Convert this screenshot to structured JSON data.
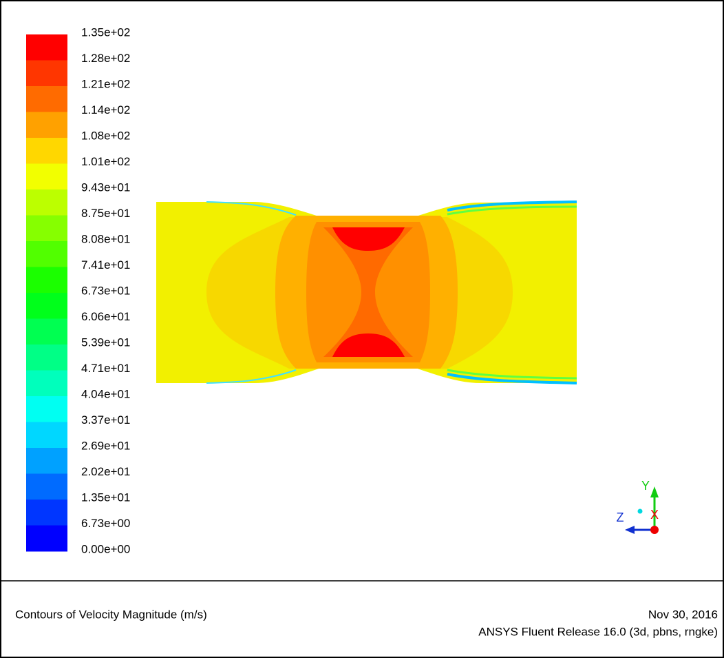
{
  "legend": {
    "labels": [
      "1.35e+02",
      "1.28e+02",
      "1.21e+02",
      "1.14e+02",
      "1.08e+02",
      "1.01e+02",
      "9.43e+01",
      "8.75e+01",
      "8.08e+01",
      "7.41e+01",
      "6.73e+01",
      "6.06e+01",
      "5.39e+01",
      "4.71e+01",
      "4.04e+01",
      "3.37e+01",
      "2.69e+01",
      "2.02e+01",
      "1.35e+01",
      "6.73e+00",
      "0.00e+00"
    ]
  },
  "axes": {
    "y": "Y",
    "z": "Z",
    "x": "X"
  },
  "footer": {
    "title": "Contours of Velocity Magnitude (m/s)",
    "date": "Nov 30, 2016",
    "release": "ANSYS Fluent Release 16.0 (3d, pbns, rngke)"
  }
}
